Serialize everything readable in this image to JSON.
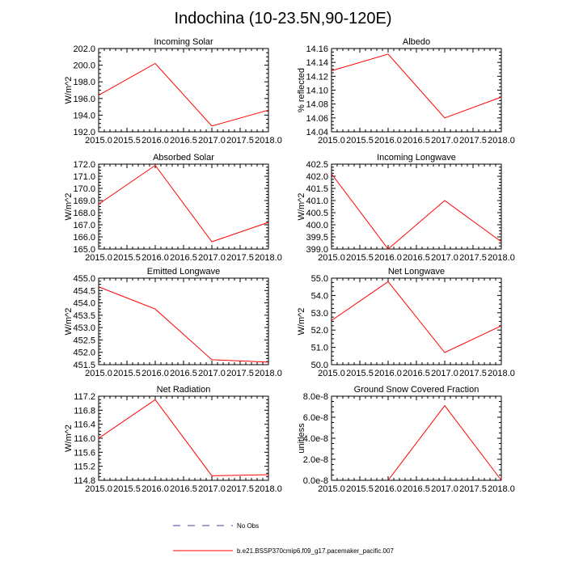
{
  "figure": {
    "title": "Indochina (10-23.5N,90-120E)",
    "line_color": "#ff0000",
    "obs_color": "#4b3fa6",
    "legend": [
      {
        "label": "No Obs",
        "style": "dashed"
      },
      {
        "label": "b.e21.BSSP370cmip6.f09_g17.pacemaker_pacific.007",
        "style": "solid"
      }
    ]
  },
  "chart_data": [
    {
      "type": "line",
      "title": "Incoming Solar",
      "ylabel": "W/m^2",
      "xlabel": "",
      "x": [
        2015,
        2016,
        2017,
        2018
      ],
      "series": [
        {
          "name": "b.e21.BSSP370cmip6.f09_g17.pacemaker_pacific.007",
          "values": [
            196.4,
            200.2,
            192.7,
            194.6
          ]
        }
      ],
      "xlim": [
        2015,
        2018
      ],
      "ylim": [
        192,
        202
      ],
      "xticks": [
        "2015.0",
        "2015.5",
        "2016.0",
        "2016.5",
        "2017.0",
        "2017.5",
        "2018.0"
      ],
      "yticks": [
        "192.0",
        "194.0",
        "196.0",
        "198.0",
        "200.0",
        "202.0"
      ]
    },
    {
      "type": "line",
      "title": "Albedo",
      "ylabel": "% reflected",
      "xlabel": "",
      "x": [
        2015,
        2016,
        2017,
        2018
      ],
      "series": [
        {
          "name": "b.e21.BSSP370cmip6.f09_g17.pacemaker_pacific.007",
          "values": [
            14.128,
            14.152,
            14.06,
            14.09
          ]
        }
      ],
      "xlim": [
        2015,
        2018
      ],
      "ylim": [
        14.04,
        14.16
      ],
      "xticks": [
        "2015.0",
        "2015.5",
        "2016.0",
        "2016.5",
        "2017.0",
        "2017.5",
        "2018.0"
      ],
      "yticks": [
        "14.04",
        "14.06",
        "14.08",
        "14.10",
        "14.12",
        "14.14",
        "14.16"
      ]
    },
    {
      "type": "line",
      "title": "Absorbed Solar",
      "ylabel": "W/m^2",
      "xlabel": "",
      "x": [
        2015,
        2016,
        2017,
        2018
      ],
      "series": [
        {
          "name": "b.e21.BSSP370cmip6.f09_g17.pacemaker_pacific.007",
          "values": [
            168.7,
            171.9,
            165.6,
            167.2
          ]
        }
      ],
      "xlim": [
        2015,
        2018
      ],
      "ylim": [
        165,
        172
      ],
      "xticks": [
        "2015.0",
        "2015.5",
        "2016.0",
        "2016.5",
        "2017.0",
        "2017.5",
        "2018.0"
      ],
      "yticks": [
        "165.0",
        "166.0",
        "167.0",
        "168.0",
        "169.0",
        "170.0",
        "171.0",
        "172.0"
      ]
    },
    {
      "type": "line",
      "title": "Incoming Longwave",
      "ylabel": "W/m^2",
      "xlabel": "",
      "x": [
        2015,
        2016,
        2017,
        2018
      ],
      "series": [
        {
          "name": "b.e21.BSSP370cmip6.f09_g17.pacemaker_pacific.007",
          "values": [
            402.1,
            399.0,
            401.0,
            399.3
          ]
        }
      ],
      "xlim": [
        2015,
        2018
      ],
      "ylim": [
        399,
        402.5
      ],
      "xticks": [
        "2015.0",
        "2015.5",
        "2016.0",
        "2016.5",
        "2017.0",
        "2017.5",
        "2018.0"
      ],
      "yticks": [
        "399.0",
        "399.5",
        "400.0",
        "400.5",
        "401.0",
        "401.5",
        "402.0",
        "402.5"
      ]
    },
    {
      "type": "line",
      "title": "Emitted Longwave",
      "ylabel": "W/m^2",
      "xlabel": "",
      "x": [
        2015,
        2016,
        2017,
        2018
      ],
      "series": [
        {
          "name": "b.e21.BSSP370cmip6.f09_g17.pacemaker_pacific.007",
          "values": [
            454.65,
            453.75,
            451.7,
            451.6
          ]
        }
      ],
      "xlim": [
        2015,
        2018
      ],
      "ylim": [
        451.5,
        455
      ],
      "xticks": [
        "2015.0",
        "2015.5",
        "2016.0",
        "2016.5",
        "2017.0",
        "2017.5",
        "2018.0"
      ],
      "yticks": [
        "451.5",
        "452.0",
        "452.5",
        "453.0",
        "453.5",
        "454.0",
        "454.5",
        "455.0"
      ]
    },
    {
      "type": "line",
      "title": "Net Longwave",
      "ylabel": "W/m^2",
      "xlabel": "",
      "x": [
        2015,
        2016,
        2017,
        2018
      ],
      "series": [
        {
          "name": "b.e21.BSSP370cmip6.f09_g17.pacemaker_pacific.007",
          "values": [
            52.55,
            54.8,
            50.7,
            52.25
          ]
        }
      ],
      "xlim": [
        2015,
        2018
      ],
      "ylim": [
        50,
        55
      ],
      "xticks": [
        "2015.0",
        "2015.5",
        "2016.0",
        "2016.5",
        "2017.0",
        "2017.5",
        "2018.0"
      ],
      "yticks": [
        "50.0",
        "51.0",
        "52.0",
        "53.0",
        "54.0",
        "55.0"
      ]
    },
    {
      "type": "line",
      "title": "Net Radiation",
      "ylabel": "W/m^2",
      "xlabel": "",
      "x": [
        2015,
        2016,
        2017,
        2018
      ],
      "series": [
        {
          "name": "b.e21.BSSP370cmip6.f09_g17.pacemaker_pacific.007",
          "values": [
            116.0,
            117.1,
            114.93,
            114.96
          ]
        }
      ],
      "xlim": [
        2015,
        2018
      ],
      "ylim": [
        114.8,
        117.2
      ],
      "xticks": [
        "2015.0",
        "2015.5",
        "2016.0",
        "2016.5",
        "2017.0",
        "2017.5",
        "2018.0"
      ],
      "yticks": [
        "114.8",
        "115.2",
        "115.6",
        "116.0",
        "116.4",
        "116.8",
        "117.2"
      ]
    },
    {
      "type": "line",
      "title": "Ground Snow Covered Fraction",
      "ylabel": "unitless",
      "xlabel": "",
      "x": [
        2016,
        2017,
        2018
      ],
      "series": [
        {
          "name": "b.e21.BSSP370cmip6.f09_g17.pacemaker_pacific.007",
          "values": [
            0.0,
            7.1e-08,
            0.0
          ]
        }
      ],
      "xlim": [
        2015,
        2018
      ],
      "ylim": [
        0,
        8e-08
      ],
      "xticks": [
        "2015.0",
        "2015.5",
        "2016.0",
        "2016.5",
        "2017.0",
        "2017.5",
        "2018.0"
      ],
      "yticks": [
        "0.0e-8",
        "2.0e-8",
        "4.0e-8",
        "6.0e-8",
        "8.0e-8"
      ]
    }
  ]
}
